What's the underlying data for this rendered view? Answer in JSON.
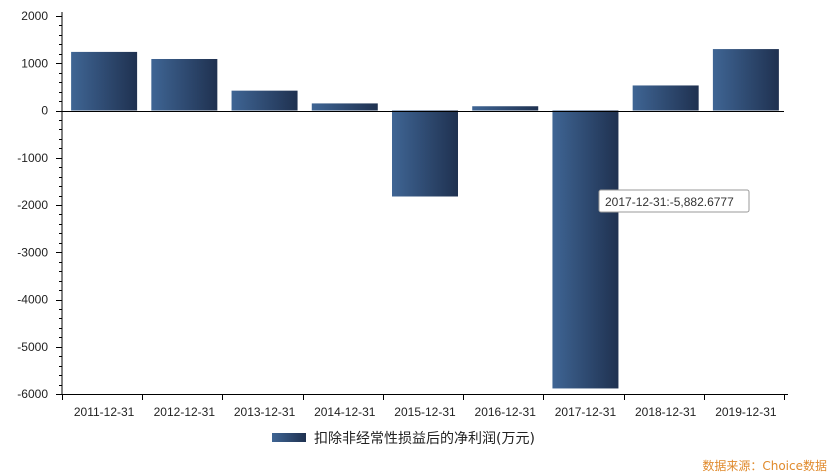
{
  "chart_data": {
    "type": "bar",
    "categories": [
      "2011-12-31",
      "2012-12-31",
      "2013-12-31",
      "2014-12-31",
      "2015-12-31",
      "2016-12-31",
      "2017-12-31",
      "2018-12-31",
      "2019-12-31"
    ],
    "series": [
      {
        "name": "扣除非经常性损益后的净利润(万元)",
        "values": [
          1240,
          1090,
          420,
          150,
          -1820,
          90,
          -5882.6777,
          530,
          1300
        ]
      }
    ],
    "ylim": [
      -6000,
      2000
    ],
    "yticks": [
      2000,
      1000,
      0,
      -1000,
      -2000,
      -3000,
      -4000,
      -5000,
      -6000
    ],
    "ytick_labels": [
      "2000",
      "1000",
      "0",
      "-1000",
      "-2000",
      "-3000",
      "-4000",
      "-5000",
      "-6000"
    ],
    "legend_position": "bottom-center",
    "grid": false,
    "bar_color_dark": "#1f3150",
    "bar_color_light": "#3f6594",
    "tooltip": {
      "category": "2017-12-31",
      "text": "2017-12-31:-5,882.6777"
    },
    "source": "数据来源：Choice数据"
  }
}
